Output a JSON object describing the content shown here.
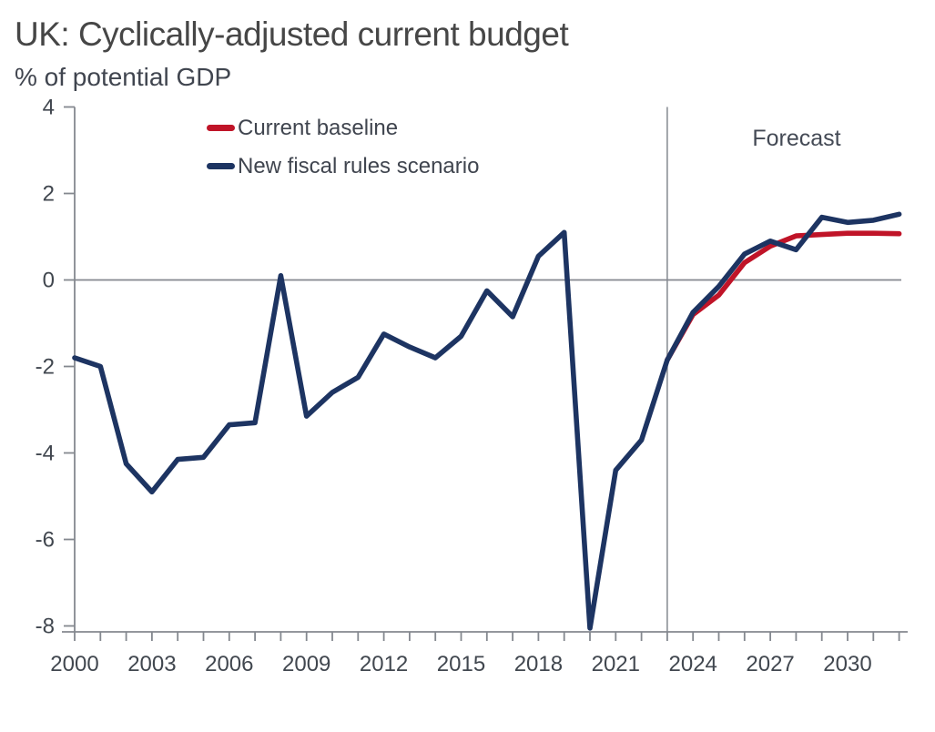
{
  "title": "UK: Cyclically-adjusted current budget",
  "subtitle": "% of potential GDP",
  "forecast_label": "Forecast",
  "legend": [
    {
      "label": "Current baseline",
      "color": "#c01428"
    },
    {
      "label": "New fiscal rules scenario",
      "color": "#1d3462"
    }
  ],
  "colors": {
    "axis_gray": "#84888f",
    "tick_text": "#41474f",
    "title_text": "#464646",
    "series_red": "#c01428",
    "series_navy": "#1d3462",
    "background": "#ffffff"
  },
  "chart_data": {
    "type": "line",
    "title": "UK: Cyclically-adjusted current budget",
    "xlabel": "",
    "ylabel": "% of potential GDP",
    "xlim": [
      2000,
      2032
    ],
    "ylim": [
      -8.15,
      4
    ],
    "y_ticks": [
      4,
      2,
      0,
      -2,
      -4,
      -6,
      -8
    ],
    "x_tick_step": 1,
    "x_tick_labels": [
      2000,
      2003,
      2006,
      2009,
      2012,
      2015,
      2018,
      2021,
      2024,
      2027,
      2030
    ],
    "grid": false,
    "zero_line": true,
    "forecast_divider_x": 2023,
    "legend_position": "top-left-inside",
    "annotations": [
      {
        "text": "Forecast",
        "x": 2028,
        "y": 3.3
      }
    ],
    "series": [
      {
        "name": "Current baseline",
        "color": "#c01428",
        "x": [
          2023,
          2024,
          2025,
          2026,
          2027,
          2028,
          2029,
          2030,
          2031,
          2032
        ],
        "values": [
          -1.85,
          -0.8,
          -0.35,
          0.4,
          0.78,
          1.02,
          1.05,
          1.08,
          1.08,
          1.07
        ]
      },
      {
        "name": "New fiscal rules scenario",
        "color": "#1d3462",
        "x": [
          2000,
          2001,
          2002,
          2003,
          2004,
          2005,
          2006,
          2007,
          2008,
          2009,
          2010,
          2011,
          2012,
          2013,
          2014,
          2015,
          2016,
          2017,
          2018,
          2019,
          2020,
          2021,
          2022,
          2023,
          2024,
          2025,
          2026,
          2027,
          2028,
          2029,
          2030,
          2031,
          2032
        ],
        "values": [
          -1.8,
          -2.0,
          -4.25,
          -4.9,
          -4.15,
          -4.1,
          -3.35,
          -3.3,
          0.1,
          -3.15,
          -2.6,
          -2.25,
          -1.25,
          -1.55,
          -1.8,
          -1.3,
          -0.25,
          -0.85,
          0.55,
          1.1,
          -8.05,
          -4.4,
          -3.7,
          -1.85,
          -0.75,
          -0.15,
          0.6,
          0.9,
          0.7,
          1.45,
          1.33,
          1.38,
          1.52
        ]
      }
    ]
  }
}
